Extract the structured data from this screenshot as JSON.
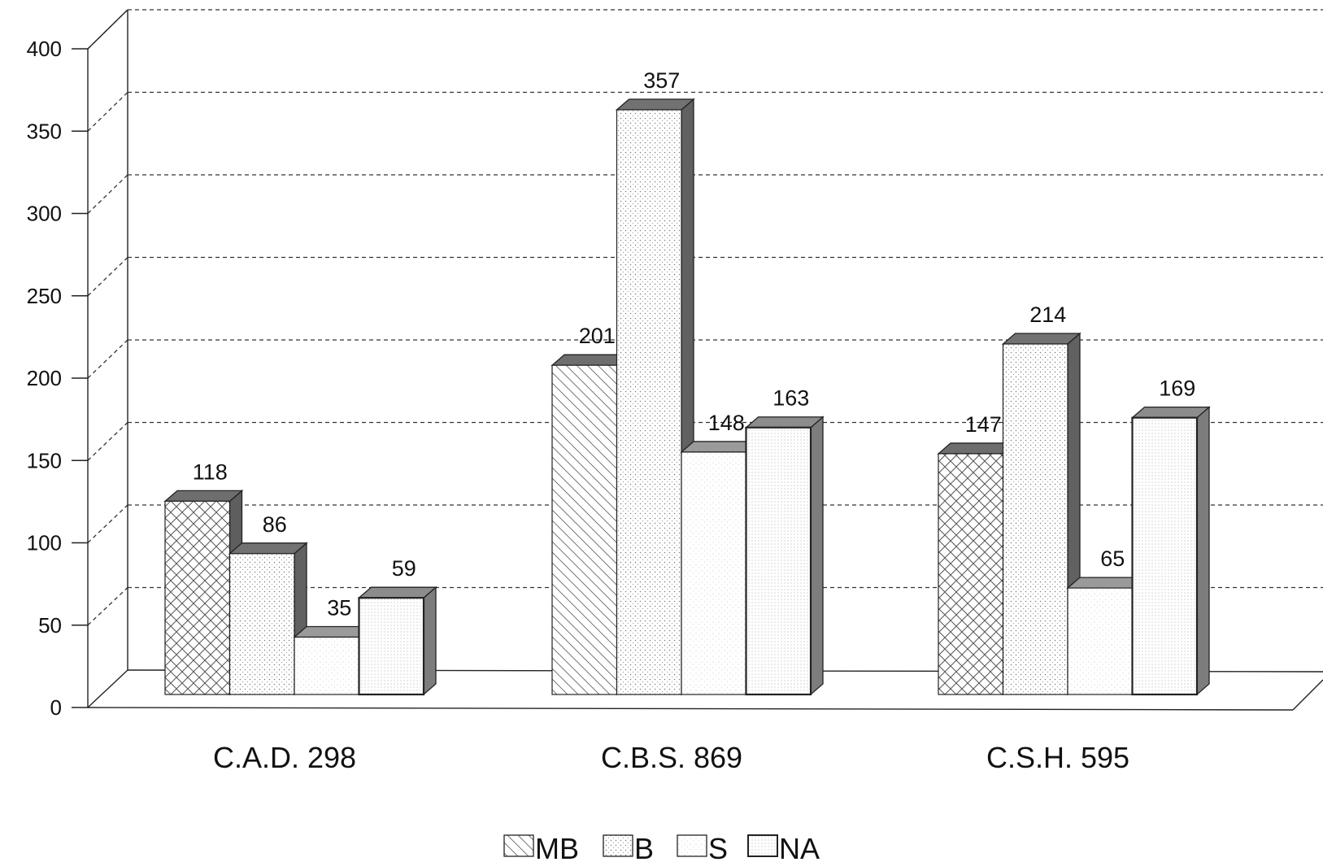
{
  "chart_data": {
    "type": "bar",
    "categories": [
      "C.A.D. 298",
      "C.B.S. 869",
      "C.S.H. 595"
    ],
    "series": [
      {
        "name": "MB",
        "values": [
          118,
          201,
          147
        ]
      },
      {
        "name": "B",
        "values": [
          86,
          357,
          214
        ]
      },
      {
        "name": "S",
        "values": [
          35,
          148,
          65
        ]
      },
      {
        "name": "NA",
        "values": [
          59,
          163,
          169
        ]
      }
    ],
    "data_labels": [
      [
        "118",
        "86",
        "35",
        "59"
      ],
      [
        "201",
        "357",
        "148",
        "163"
      ],
      [
        "147",
        "214",
        "65",
        "169"
      ]
    ],
    "y_ticks": [
      "0",
      "50",
      "100",
      "150",
      "200",
      "250",
      "300",
      "350",
      "400"
    ],
    "ylim": [
      0,
      400
    ],
    "title": "",
    "xlabel": "",
    "ylabel": "",
    "grid": true,
    "three_d": true,
    "legend_position": "bottom-center"
  }
}
